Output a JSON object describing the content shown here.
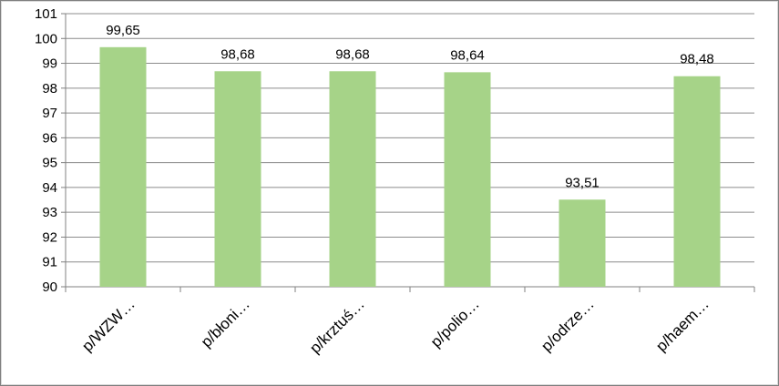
{
  "chart_data": {
    "type": "bar",
    "title": "",
    "xlabel": "",
    "ylabel": "",
    "categories": [
      "p/WZW…",
      "p/błoni…",
      "p/krztuś…",
      "p/polio…",
      "p/odrze…",
      "p/haem…"
    ],
    "values": [
      99.65,
      98.68,
      98.68,
      98.64,
      93.51,
      98.48
    ],
    "data_labels": [
      "99,65",
      "98,68",
      "98,68",
      "98,64",
      "93,51",
      "98,48"
    ],
    "ylim": [
      90,
      101
    ],
    "yticks": [
      "90",
      "91",
      "92",
      "93",
      "94",
      "95",
      "96",
      "97",
      "98",
      "99",
      "100",
      "101"
    ],
    "grid": true,
    "legend": "none",
    "colors": {
      "bar": "#a6d388",
      "grid": "#8c8c8c",
      "axis": "#808080"
    }
  }
}
